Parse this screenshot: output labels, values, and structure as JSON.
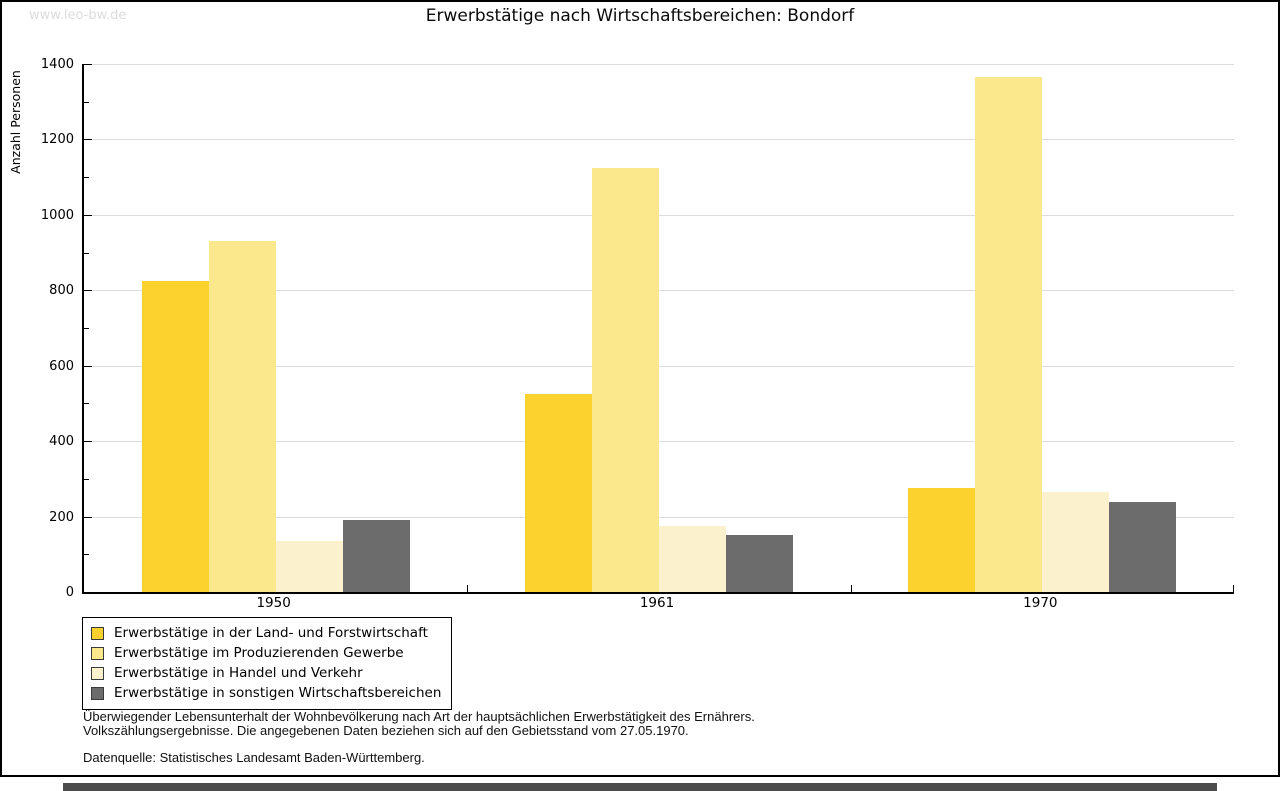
{
  "watermark": "www.leo-bw.de",
  "title": "Erwerbstätige nach Wirtschaftsbereichen: Bondorf",
  "chart_data": {
    "type": "bar",
    "title": "Erwerbstätige nach Wirtschaftsbereichen: Bondorf",
    "xlabel": "",
    "ylabel": "Anzahl Personen",
    "ylim": [
      0,
      1400
    ],
    "yticks": [
      0,
      200,
      400,
      600,
      800,
      1000,
      1200,
      1400
    ],
    "minor_tick_step": 100,
    "grid": true,
    "legend_position": "bottom-left",
    "categories": [
      "1950",
      "1961",
      "1970"
    ],
    "series": [
      {
        "name": "Erwerbstätige in der Land- und Forstwirtschaft",
        "color": "#FCD32E",
        "values": [
          825,
          525,
          275
        ]
      },
      {
        "name": "Erwerbstätige im Produzierenden Gewerbe",
        "color": "#FBE88C",
        "values": [
          930,
          1125,
          1365
        ]
      },
      {
        "name": "Erwerbstätige in Handel und Verkehr",
        "color": "#FBF2CD",
        "values": [
          135,
          175,
          265
        ]
      },
      {
        "name": "Erwerbstätige in sonstigen Wirtschaftsbereichen",
        "color": "#6C6C6C",
        "values": [
          190,
          150,
          240
        ]
      }
    ]
  },
  "footnote": {
    "line1": "Überwiegender Lebensunterhalt der Wohnbevölkerung nach Art der hauptsächlichen Erwerbstätigkeit des Ernährers.",
    "line2": "Volkszählungsergebnisse. Die angegebenen Daten beziehen sich auf den Gebietsstand vom 27.05.1970.",
    "source": "Datenquelle: Statistisches Landesamt Baden-Württemberg."
  },
  "colors": {
    "gridline": "#DCDCDC",
    "axis": "#000000",
    "watermark": "#DCDCDC",
    "scrollbar_thumb": "#4B4B4B"
  }
}
